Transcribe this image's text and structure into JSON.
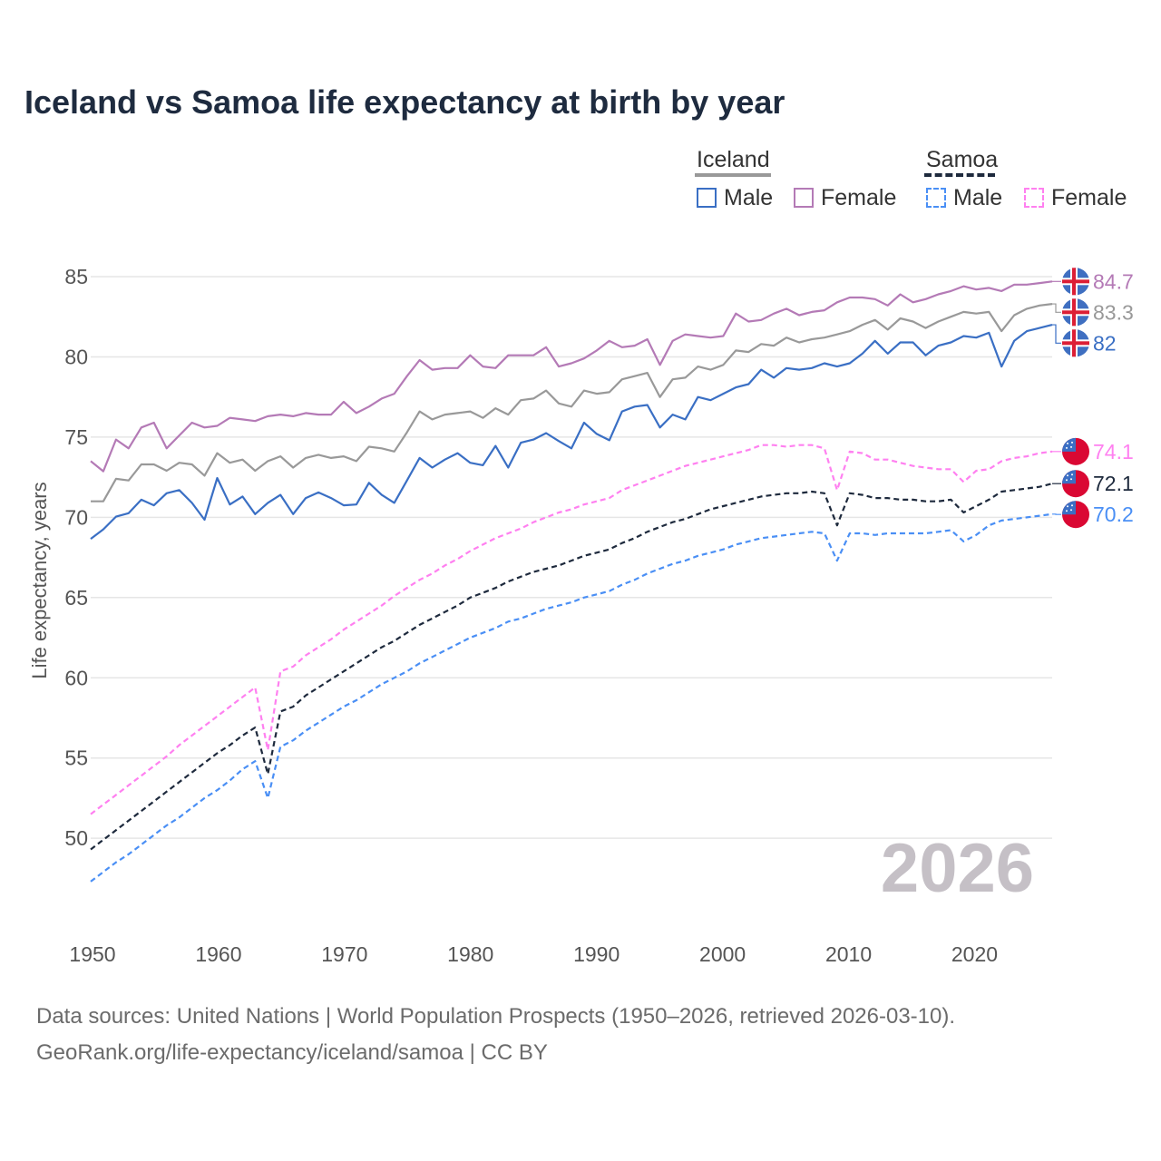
{
  "chart_data": {
    "type": "line",
    "title": "Iceland vs Samoa life expectancy at birth by year",
    "xlabel": "",
    "ylabel": "Life expectancy, years",
    "xlim": [
      1950,
      2026
    ],
    "ylim": [
      45,
      86
    ],
    "grid": true,
    "x_ticks": [
      1950,
      1960,
      1970,
      1980,
      1990,
      2000,
      2010,
      2020
    ],
    "y_ticks": [
      50,
      55,
      60,
      65,
      70,
      75,
      80,
      85
    ],
    "year_watermark": "2026",
    "legend": {
      "placement": "top-right",
      "groups": [
        {
          "name": "Iceland",
          "items": [
            "Male",
            "Female"
          ]
        },
        {
          "name": "Samoa",
          "items": [
            "Male",
            "Female"
          ]
        }
      ]
    },
    "series": [
      {
        "name": "Iceland Female",
        "country": "Iceland",
        "sex": "Female",
        "color": "#b47ab6",
        "dashed": false,
        "end_label": "84.7",
        "values": [
          73.5,
          72.87,
          74.85,
          74.3,
          75.6,
          75.9,
          74.3,
          75.1,
          75.9,
          75.6,
          75.7,
          76.2,
          76.1,
          76.0,
          76.3,
          76.4,
          76.3,
          76.5,
          76.4,
          76.4,
          77.2,
          76.5,
          76.9,
          77.4,
          77.7,
          78.8,
          79.8,
          79.2,
          79.3,
          79.3,
          80.1,
          79.4,
          79.3,
          80.1,
          80.1,
          80.1,
          80.6,
          79.4,
          79.6,
          79.9,
          80.4,
          81.0,
          80.6,
          80.7,
          81.1,
          79.5,
          81.0,
          81.4,
          81.3,
          81.2,
          81.3,
          82.7,
          82.2,
          82.3,
          82.7,
          83.0,
          82.6,
          82.8,
          82.9,
          83.4,
          83.7,
          83.7,
          83.6,
          83.2,
          83.9,
          83.4,
          83.6,
          83.9,
          84.1,
          84.4,
          84.2,
          84.3,
          84.1,
          84.5,
          84.5,
          84.6,
          84.7
        ]
      },
      {
        "name": "Iceland Total",
        "country": "Iceland",
        "sex": "Total",
        "color": "#999999",
        "dashed": false,
        "end_label": "83.3",
        "values": [
          71.0,
          71.0,
          72.4,
          72.3,
          73.3,
          73.3,
          72.9,
          73.4,
          73.3,
          72.6,
          74.0,
          73.4,
          73.6,
          72.9,
          73.5,
          73.8,
          73.1,
          73.7,
          73.9,
          73.7,
          73.8,
          73.5,
          74.4,
          74.3,
          74.1,
          75.3,
          76.6,
          76.1,
          76.4,
          76.5,
          76.6,
          76.2,
          76.8,
          76.4,
          77.3,
          77.4,
          77.9,
          77.1,
          76.9,
          77.9,
          77.7,
          77.8,
          78.6,
          78.8,
          79.0,
          77.5,
          78.6,
          78.7,
          79.4,
          79.2,
          79.5,
          80.4,
          80.3,
          80.8,
          80.7,
          81.2,
          80.9,
          81.1,
          81.2,
          81.4,
          81.6,
          82.0,
          82.3,
          81.7,
          82.4,
          82.2,
          81.8,
          82.2,
          82.5,
          82.8,
          82.7,
          82.8,
          81.6,
          82.6,
          83.0,
          83.2,
          83.3
        ]
      },
      {
        "name": "Iceland Male",
        "country": "Iceland",
        "sex": "Male",
        "color": "#3a6fc4",
        "dashed": false,
        "end_label": "82",
        "values": [
          68.66,
          69.25,
          70.04,
          70.26,
          71.1,
          70.75,
          71.5,
          71.7,
          70.9,
          69.85,
          72.45,
          70.8,
          71.3,
          70.2,
          70.9,
          71.4,
          70.2,
          71.2,
          71.55,
          71.2,
          70.75,
          70.8,
          72.15,
          71.4,
          70.9,
          72.3,
          73.7,
          73.1,
          73.6,
          74.0,
          73.4,
          73.25,
          74.45,
          73.1,
          74.65,
          74.85,
          75.25,
          74.75,
          74.3,
          75.9,
          75.2,
          74.8,
          76.6,
          76.9,
          77.0,
          75.6,
          76.4,
          76.1,
          77.5,
          77.3,
          77.7,
          78.1,
          78.3,
          79.2,
          78.7,
          79.3,
          79.2,
          79.3,
          79.6,
          79.4,
          79.6,
          80.2,
          81.0,
          80.2,
          80.9,
          80.9,
          80.1,
          80.7,
          80.9,
          81.3,
          81.2,
          81.5,
          79.4,
          81.0,
          81.6,
          81.8,
          82.0
        ]
      },
      {
        "name": "Samoa Female",
        "country": "Samoa",
        "sex": "Female",
        "color": "#ff80f0",
        "dashed": true,
        "end_label": "74.1",
        "values": [
          51.5,
          52.1,
          52.7,
          53.3,
          53.9,
          54.5,
          55.1,
          55.8,
          56.4,
          57.0,
          57.6,
          58.2,
          58.8,
          59.4,
          55.5,
          60.4,
          60.7,
          61.4,
          61.9,
          62.4,
          63.0,
          63.5,
          64.0,
          64.5,
          65.1,
          65.6,
          66.1,
          66.5,
          67.0,
          67.4,
          67.9,
          68.3,
          68.7,
          69.0,
          69.3,
          69.7,
          70.0,
          70.3,
          70.5,
          70.8,
          71.0,
          71.2,
          71.7,
          72.0,
          72.3,
          72.6,
          72.9,
          73.2,
          73.4,
          73.6,
          73.8,
          74.0,
          74.2,
          74.5,
          74.5,
          74.4,
          74.5,
          74.5,
          74.3,
          71.7,
          74.1,
          74.0,
          73.6,
          73.6,
          73.4,
          73.2,
          73.1,
          73.0,
          73.0,
          72.2,
          72.9,
          73.0,
          73.5,
          73.7,
          73.8,
          74.0,
          74.1
        ]
      },
      {
        "name": "Samoa Total",
        "country": "Samoa",
        "sex": "Total",
        "color": "#1e2a3d",
        "dashed": true,
        "end_label": "72.1",
        "values": [
          49.3,
          49.9,
          50.5,
          51.1,
          51.7,
          52.3,
          52.9,
          53.5,
          54.1,
          54.7,
          55.3,
          55.8,
          56.4,
          56.9,
          54.0,
          57.9,
          58.2,
          58.9,
          59.4,
          59.9,
          60.4,
          60.9,
          61.4,
          61.9,
          62.3,
          62.8,
          63.3,
          63.7,
          64.1,
          64.5,
          65.0,
          65.3,
          65.6,
          66.0,
          66.3,
          66.6,
          66.8,
          67.0,
          67.3,
          67.6,
          67.8,
          68.0,
          68.4,
          68.7,
          69.1,
          69.4,
          69.7,
          69.9,
          70.2,
          70.5,
          70.7,
          70.9,
          71.1,
          71.3,
          71.4,
          71.5,
          71.5,
          71.6,
          71.5,
          69.5,
          71.5,
          71.4,
          71.2,
          71.2,
          71.1,
          71.1,
          71.0,
          71.0,
          71.1,
          70.3,
          70.7,
          71.1,
          71.6,
          71.7,
          71.8,
          71.9,
          72.1
        ]
      },
      {
        "name": "Samoa Male",
        "country": "Samoa",
        "sex": "Male",
        "color": "#4a8ff5",
        "dashed": true,
        "end_label": "70.2",
        "values": [
          47.3,
          47.9,
          48.5,
          49.0,
          49.6,
          50.2,
          50.8,
          51.3,
          51.9,
          52.5,
          53.0,
          53.6,
          54.3,
          54.8,
          52.5,
          55.7,
          56.1,
          56.7,
          57.2,
          57.7,
          58.2,
          58.6,
          59.1,
          59.6,
          60.0,
          60.4,
          60.9,
          61.3,
          61.7,
          62.1,
          62.5,
          62.8,
          63.1,
          63.5,
          63.7,
          64.0,
          64.3,
          64.5,
          64.7,
          65.0,
          65.2,
          65.4,
          65.8,
          66.1,
          66.5,
          66.8,
          67.1,
          67.3,
          67.6,
          67.8,
          68.0,
          68.3,
          68.5,
          68.7,
          68.8,
          68.9,
          69.0,
          69.1,
          69.0,
          67.3,
          69.0,
          69.0,
          68.9,
          69.0,
          69.0,
          69.0,
          69.0,
          69.1,
          69.2,
          68.5,
          68.9,
          69.5,
          69.8,
          69.9,
          70.0,
          70.1,
          70.2
        ]
      }
    ]
  },
  "footer": {
    "line1": "Data sources: United Nations | World Population Prospects (1950–2026, retrieved 2026-03-10).",
    "line2": "GeoRank.org/life-expectancy/iceland/samoa | CC BY"
  },
  "colors": {
    "title": "#1e2b3f",
    "grid": "#e6e6e6",
    "watermark": "#c5c0c6"
  }
}
